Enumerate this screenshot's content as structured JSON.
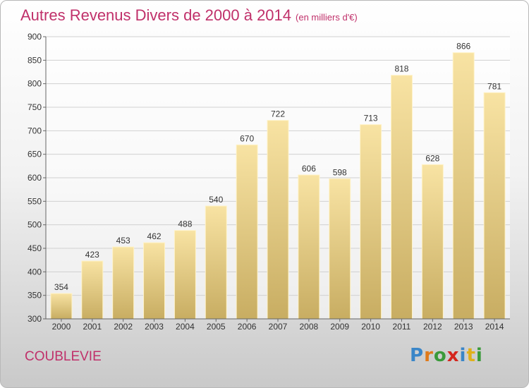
{
  "header": {
    "title": "Autres Revenus Divers de 2000 à 2014",
    "subtitle": "(en milliers d'€)"
  },
  "footer": {
    "place": "COUBLEVIE",
    "logo_text": "Proxiti",
    "logo_colors": [
      "#3a86c8",
      "#e07a1a",
      "#3a9a3a",
      "#d4261d",
      "#3a86c8",
      "#e0b01a",
      "#3a9a3a"
    ]
  },
  "colors": {
    "title": "#c0306a",
    "bar_top": "#f8e3a3",
    "bar_bottom": "#c8ad62",
    "grid": "#d0d0d0",
    "axis_text": "#333333"
  },
  "chart_data": {
    "type": "bar",
    "categories": [
      "2000",
      "2001",
      "2002",
      "2003",
      "2004",
      "2005",
      "2006",
      "2007",
      "2008",
      "2009",
      "2010",
      "2011",
      "2012",
      "2013",
      "2014"
    ],
    "values": [
      354,
      423,
      453,
      462,
      488,
      540,
      670,
      722,
      606,
      598,
      713,
      818,
      628,
      866,
      781
    ],
    "title": "Autres Revenus Divers de 2000 à 2014",
    "ylim": [
      300,
      900
    ],
    "yticks": [
      300,
      350,
      400,
      450,
      500,
      550,
      600,
      650,
      700,
      750,
      800,
      850,
      900
    ],
    "grid": true
  }
}
